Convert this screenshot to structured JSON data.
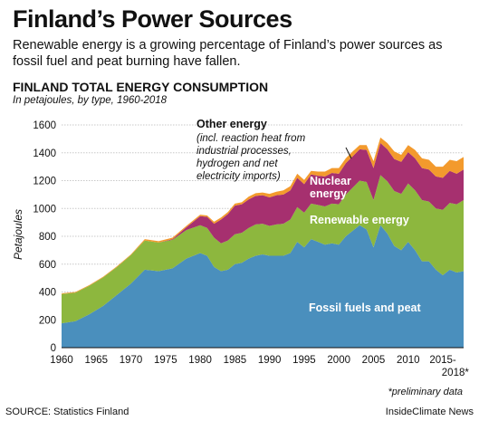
{
  "header": {
    "title": "Finland’s Power Sources",
    "subtitle": "Renewable energy is a growing percentage of Finland’s power sources as fossil fuel and peat burning have fallen."
  },
  "chart_data": {
    "type": "area",
    "stacked": true,
    "title": "FINLAND TOTAL ENERGY CONSUMPTION",
    "subtitle": "In petajoules, by type, 1960-2018",
    "xlabel": "",
    "ylabel": "Petajoules",
    "ylim": [
      0,
      1600
    ],
    "y_ticks": [
      0,
      200,
      400,
      600,
      800,
      1000,
      1200,
      1400,
      1600
    ],
    "x_ticks": [
      "1960",
      "1965",
      "1970",
      "1975",
      "1980",
      "1985",
      "1990",
      "1995",
      "2000",
      "2005",
      "2010",
      "2015-",
      "2018*"
    ],
    "grid": true,
    "x": [
      1960,
      1962,
      1964,
      1966,
      1968,
      1970,
      1972,
      1974,
      1976,
      1978,
      1980,
      1981,
      1982,
      1983,
      1984,
      1985,
      1986,
      1987,
      1988,
      1989,
      1990,
      1991,
      1992,
      1993,
      1994,
      1995,
      1996,
      1997,
      1998,
      1999,
      2000,
      2001,
      2002,
      2003,
      2004,
      2005,
      2006,
      2007,
      2008,
      2009,
      2010,
      2011,
      2012,
      2013,
      2014,
      2015,
      2016,
      2017,
      2018
    ],
    "series": [
      {
        "name": "Fossil fuels and peat",
        "color": "#4a8fbd",
        "values": [
          175,
          190,
          240,
          300,
          380,
          460,
          560,
          550,
          570,
          640,
          680,
          660,
          580,
          550,
          560,
          600,
          610,
          640,
          660,
          670,
          660,
          660,
          660,
          680,
          760,
          720,
          780,
          760,
          740,
          750,
          740,
          800,
          840,
          880,
          850,
          720,
          880,
          820,
          730,
          700,
          760,
          700,
          620,
          620,
          560,
          520,
          560,
          540,
          550
        ]
      },
      {
        "name": "Renewable energy",
        "color": "#8db73e",
        "values": [
          210,
          205,
          205,
          205,
          200,
          205,
          210,
          205,
          205,
          205,
          200,
          200,
          210,
          200,
          210,
          215,
          215,
          220,
          225,
          220,
          215,
          225,
          230,
          240,
          250,
          250,
          255,
          265,
          275,
          285,
          290,
          300,
          310,
          320,
          340,
          340,
          360,
          375,
          395,
          405,
          420,
          430,
          440,
          430,
          440,
          470,
          480,
          490,
          510
        ]
      },
      {
        "name": "Nuclear energy",
        "color": "#a6306f",
        "values": [
          0,
          0,
          0,
          0,
          0,
          0,
          0,
          0,
          5,
          20,
          65,
          80,
          100,
          170,
          190,
          205,
          205,
          205,
          205,
          205,
          205,
          210,
          210,
          210,
          210,
          205,
          210,
          210,
          215,
          220,
          220,
          225,
          225,
          225,
          230,
          230,
          230,
          230,
          230,
          230,
          225,
          230,
          230,
          230,
          230,
          230,
          230,
          220,
          220
        ]
      },
      {
        "name": "Other energy",
        "note": "(incl. reaction heat from industrial processes, hydrogen and net electricity imports)",
        "color": "#f39a2d",
        "values": [
          5,
          5,
          5,
          5,
          5,
          5,
          10,
          10,
          10,
          10,
          10,
          10,
          15,
          15,
          15,
          15,
          15,
          20,
          20,
          20,
          25,
          25,
          30,
          30,
          30,
          30,
          25,
          30,
          35,
          35,
          40,
          35,
          35,
          30,
          35,
          50,
          40,
          45,
          55,
          50,
          50,
          60,
          70,
          70,
          70,
          80,
          80,
          90,
          90
        ]
      }
    ],
    "annotations": {
      "other": "Other energy",
      "other_note": [
        "(incl. reaction heat from",
        "industrial processes,",
        "hydrogen and net",
        "electricity imports)"
      ],
      "nuclear": [
        "Nuclear",
        "energy"
      ],
      "renewable": "Renewable energy",
      "fossil": "Fossil fuels and peat"
    }
  },
  "footer": {
    "footnote": "*preliminary data",
    "source": "SOURCE: Statistics Finland",
    "credit": "InsideClimate News"
  }
}
